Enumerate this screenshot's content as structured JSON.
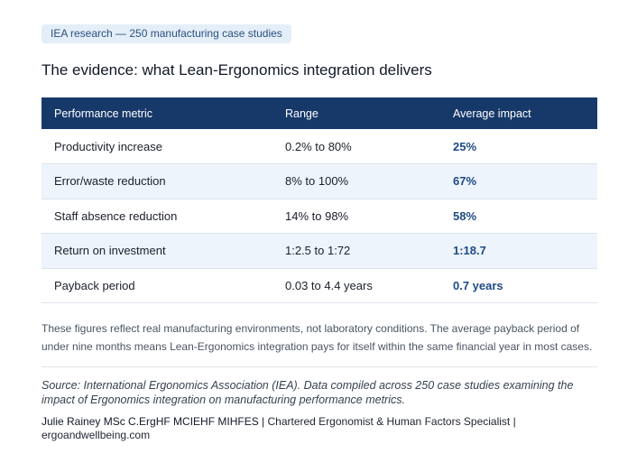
{
  "tag": "IEA research — 250 manufacturing case studies",
  "heading": "The evidence: what Lean-Ergonomics integration delivers",
  "table": {
    "headers": [
      "Performance metric",
      "Range",
      "Average impact"
    ],
    "rows": [
      {
        "metric": "Productivity increase",
        "range": "0.2% to 80%",
        "impact": "25%"
      },
      {
        "metric": "Error/waste reduction",
        "range": "8% to 100%",
        "impact": "67%"
      },
      {
        "metric": "Staff absence reduction",
        "range": "14% to 98%",
        "impact": "58%"
      },
      {
        "metric": "Return on investment",
        "range": "1:2.5 to 1:72",
        "impact": "1:18.7"
      },
      {
        "metric": "Payback period",
        "range": "0.03 to 4.4 years",
        "impact": "0.7 years"
      }
    ]
  },
  "note": "These figures reflect real manufacturing environments, not laboratory conditions. The average payback period of under nine months means Lean-Ergonomics integration pays for itself within the same financial year in most cases.",
  "source": "Source: International Ergonomics Association (IEA). Data compiled across 250 case studies examining the impact of Ergonomics integration on manufacturing performance metrics.",
  "author": {
    "name": "Julie Rainey MSc C.ErgHF MCIEHF MIHFES",
    "role": " | Chartered Ergonomist & Human Factors Specialist | ",
    "site": "ergoandwellbeing.com"
  },
  "colors": {
    "header_bg": "#17396a",
    "tag_bg": "#e4eef8",
    "impact": "#1f4a85",
    "row_alt": "#eef4fb"
  }
}
